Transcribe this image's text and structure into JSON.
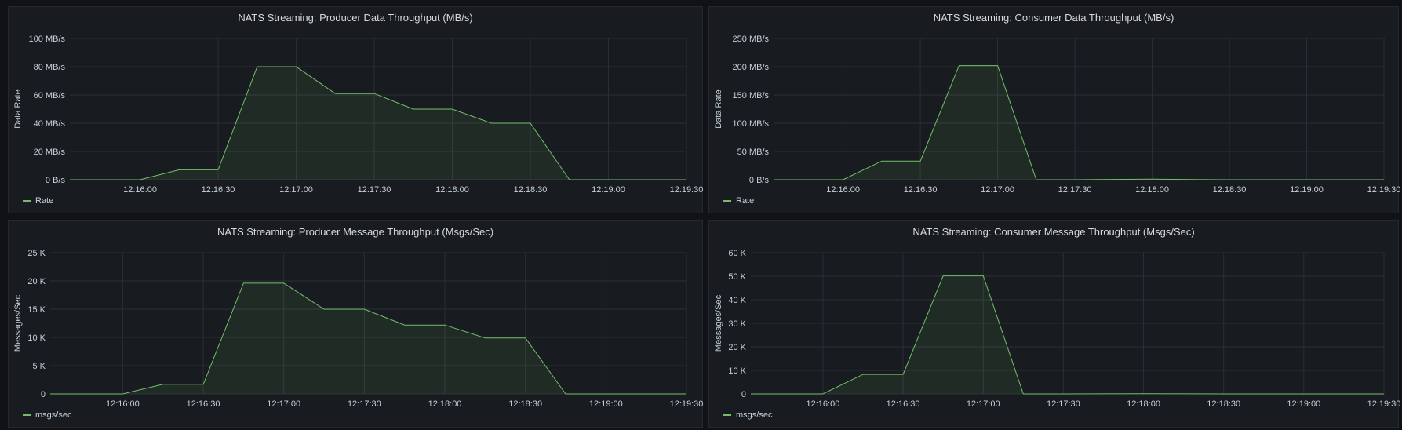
{
  "colors": {
    "series": "#73bf69",
    "grid": "#2c2f35",
    "text": "#c7d0d9"
  },
  "chart_data": [
    {
      "type": "area",
      "title": "NATS Streaming: Producer Data Throughput (MB/s)",
      "ylabel": "Data Rate",
      "xlim": [
        "12:15:33",
        "12:19:30"
      ],
      "xticks": [
        "12:16:00",
        "12:16:30",
        "12:17:00",
        "12:17:30",
        "12:18:00",
        "12:18:30",
        "12:19:00",
        "12:19:30"
      ],
      "ylim": [
        0,
        100
      ],
      "yticks": [
        0,
        20,
        40,
        60,
        80,
        100
      ],
      "ytick_labels": [
        "0 B/s",
        "20 MB/s",
        "40 MB/s",
        "60 MB/s",
        "80 MB/s",
        "100 MB/s"
      ],
      "series": [
        {
          "name": "Rate",
          "x": [
            "12:15:33",
            "12:16:00",
            "12:16:15",
            "12:16:30",
            "12:16:45",
            "12:17:00",
            "12:17:15",
            "12:17:30",
            "12:17:45",
            "12:18:00",
            "12:18:15",
            "12:18:30",
            "12:18:45",
            "12:19:00",
            "12:19:30"
          ],
          "y": [
            0,
            0,
            7,
            7,
            80,
            80,
            61,
            61,
            50,
            50,
            40,
            40,
            0,
            0,
            0
          ]
        }
      ]
    },
    {
      "type": "area",
      "title": "NATS Streaming: Consumer Data Throughput (MB/s)",
      "ylabel": "Data Rate",
      "xlim": [
        "12:15:33",
        "12:19:30"
      ],
      "xticks": [
        "12:16:00",
        "12:16:30",
        "12:17:00",
        "12:17:30",
        "12:18:00",
        "12:18:30",
        "12:19:00",
        "12:19:30"
      ],
      "ylim": [
        0,
        250
      ],
      "yticks": [
        0,
        50,
        100,
        150,
        200,
        250
      ],
      "ytick_labels": [
        "0 B/s",
        "50 MB/s",
        "100 MB/s",
        "150 MB/s",
        "200 MB/s",
        "250 MB/s"
      ],
      "series": [
        {
          "name": "Rate",
          "x": [
            "12:15:33",
            "12:16:00",
            "12:16:15",
            "12:16:30",
            "12:16:45",
            "12:17:00",
            "12:17:15",
            "12:17:30",
            "12:18:00",
            "12:18:30",
            "12:19:00",
            "12:19:30"
          ],
          "y": [
            0,
            0,
            33,
            33,
            202,
            202,
            0,
            0,
            1,
            0,
            0,
            0
          ]
        }
      ]
    },
    {
      "type": "area",
      "title": "NATS Streaming: Producer Message Throughput (Msgs/Sec)",
      "ylabel": "Messages/Sec",
      "xlim": [
        "12:15:33",
        "12:19:30"
      ],
      "xticks": [
        "12:16:00",
        "12:16:30",
        "12:17:00",
        "12:17:30",
        "12:18:00",
        "12:18:30",
        "12:19:00",
        "12:19:30"
      ],
      "ylim": [
        0,
        25000
      ],
      "yticks": [
        0,
        5000,
        10000,
        15000,
        20000,
        25000
      ],
      "ytick_labels": [
        "0",
        "5 K",
        "10 K",
        "15 K",
        "20 K",
        "25 K"
      ],
      "series": [
        {
          "name": "msgs/sec",
          "x": [
            "12:15:33",
            "12:16:00",
            "12:16:15",
            "12:16:30",
            "12:16:45",
            "12:17:00",
            "12:17:15",
            "12:17:30",
            "12:17:45",
            "12:18:00",
            "12:18:15",
            "12:18:30",
            "12:18:45",
            "12:19:00",
            "12:19:30"
          ],
          "y": [
            0,
            0,
            1700,
            1700,
            19600,
            19600,
            15000,
            15000,
            12200,
            12200,
            9900,
            9900,
            0,
            0,
            0
          ]
        }
      ]
    },
    {
      "type": "area",
      "title": "NATS Streaming: Consumer Message Throughput (Msgs/Sec)",
      "ylabel": "Messages/Sec",
      "xlim": [
        "12:15:33",
        "12:19:30"
      ],
      "xticks": [
        "12:16:00",
        "12:16:30",
        "12:17:00",
        "12:17:30",
        "12:18:00",
        "12:18:30",
        "12:19:00",
        "12:19:30"
      ],
      "ylim": [
        0,
        60000
      ],
      "yticks": [
        0,
        10000,
        20000,
        30000,
        40000,
        50000,
        60000
      ],
      "ytick_labels": [
        "0",
        "10 K",
        "20 K",
        "30 K",
        "40 K",
        "50 K",
        "60 K"
      ],
      "series": [
        {
          "name": "msgs/sec",
          "x": [
            "12:15:33",
            "12:16:00",
            "12:16:15",
            "12:16:30",
            "12:16:45",
            "12:17:00",
            "12:17:15",
            "12:17:30",
            "12:18:00",
            "12:18:30",
            "12:19:00",
            "12:19:30"
          ],
          "y": [
            0,
            0,
            8300,
            8300,
            50200,
            50200,
            0,
            0,
            100,
            0,
            0,
            0
          ]
        }
      ]
    }
  ]
}
